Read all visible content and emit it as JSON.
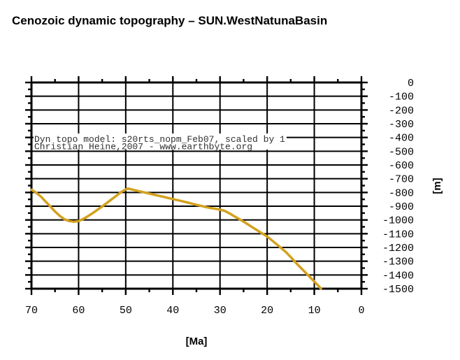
{
  "title": "Cenozoic dynamic topography – SUN.WestNatunaBasin",
  "chart_data": {
    "type": "line",
    "title": "Cenozoic dynamic topography – SUN.WestNatunaBasin",
    "xlabel": "[Ma]",
    "ylabel": "[m]",
    "x_axis": {
      "min": 0,
      "max": 70,
      "reversed": true,
      "major_ticks": [
        70,
        60,
        50,
        40,
        30,
        20,
        10,
        0
      ],
      "minor_step": 5
    },
    "y_axis": {
      "min": -1500,
      "max": 0,
      "major_ticks": [
        0,
        -100,
        -200,
        -300,
        -400,
        -500,
        -600,
        -700,
        -800,
        -900,
        -1000,
        -1100,
        -1200,
        -1300,
        -1400,
        -1500
      ],
      "minor_step": 50
    },
    "grid": true,
    "legend": false,
    "annotations": [
      "Dyn topo model: s20rts_nopm_Feb07, scaled by 1",
      "Christian Heine,2007 - www.earthbyte.org"
    ],
    "series": [
      {
        "name": "dynamic topography",
        "color": "#D2A11D",
        "points": [
          [
            70,
            -780
          ],
          [
            69,
            -802
          ],
          [
            68,
            -830
          ],
          [
            67,
            -866
          ],
          [
            66,
            -902
          ],
          [
            65,
            -938
          ],
          [
            64,
            -970
          ],
          [
            63,
            -995
          ],
          [
            62,
            -1008
          ],
          [
            61,
            -1013
          ],
          [
            60,
            -1008
          ],
          [
            59,
            -992
          ],
          [
            58,
            -972
          ],
          [
            57,
            -950
          ],
          [
            56,
            -926
          ],
          [
            55,
            -902
          ],
          [
            54,
            -876
          ],
          [
            53,
            -850
          ],
          [
            52,
            -824
          ],
          [
            51,
            -798
          ],
          [
            50,
            -778
          ],
          [
            49.5,
            -772
          ],
          [
            49,
            -776
          ],
          [
            48,
            -784
          ],
          [
            47,
            -792
          ],
          [
            46,
            -800
          ],
          [
            45,
            -808
          ],
          [
            44,
            -816
          ],
          [
            43,
            -824
          ],
          [
            42,
            -832
          ],
          [
            41,
            -840
          ],
          [
            40,
            -848
          ],
          [
            39,
            -856
          ],
          [
            38,
            -864
          ],
          [
            37,
            -872
          ],
          [
            36,
            -881
          ],
          [
            35,
            -890
          ],
          [
            34,
            -898
          ],
          [
            33,
            -906
          ],
          [
            32,
            -913
          ],
          [
            31,
            -919
          ],
          [
            30,
            -925
          ],
          [
            29,
            -934
          ],
          [
            28,
            -952
          ],
          [
            27,
            -972
          ],
          [
            26,
            -992
          ],
          [
            25,
            -1012
          ],
          [
            24,
            -1034
          ],
          [
            23,
            -1056
          ],
          [
            22,
            -1078
          ],
          [
            21,
            -1099
          ],
          [
            20,
            -1120
          ],
          [
            19,
            -1148
          ],
          [
            18,
            -1176
          ],
          [
            17,
            -1205
          ],
          [
            16,
            -1234
          ],
          [
            15,
            -1270
          ],
          [
            14,
            -1308
          ],
          [
            13,
            -1343
          ],
          [
            12,
            -1378
          ],
          [
            11,
            -1413
          ],
          [
            10,
            -1448
          ],
          [
            9,
            -1483
          ],
          [
            8.6,
            -1500
          ]
        ]
      }
    ]
  }
}
